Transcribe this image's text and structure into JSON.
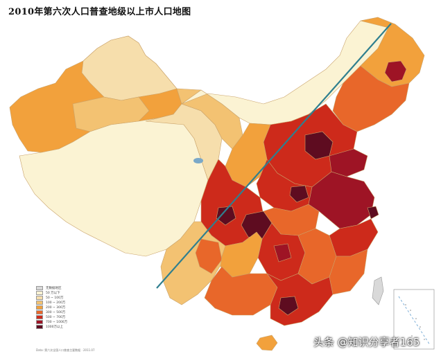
{
  "map": {
    "title": "2010年第六次人口普查地级以上市人口地图",
    "line_color": "#2f7f8f",
    "region_border_color": "#c9a26a"
  },
  "legend": {
    "entries": [
      {
        "label": "无数据地区",
        "color": "#d9d9d9"
      },
      {
        "label": "50 万以下",
        "color": "#fbf3d3"
      },
      {
        "label": "50 ~ 100万",
        "color": "#f6deac"
      },
      {
        "label": "100 ~ 200万",
        "color": "#f3c272"
      },
      {
        "label": "200 ~ 300万",
        "color": "#f2a13c"
      },
      {
        "label": "300 ~ 500万",
        "color": "#e8672a"
      },
      {
        "label": "500 ~ 700万",
        "color": "#cd2a1b"
      },
      {
        "label": "700 ~ 1000万",
        "color": "#9e1425"
      },
      {
        "label": "1000万以上",
        "color": "#5e0c20"
      }
    ],
    "footer": "Data: 第六次全国人口普查主要数据 · 2011.07"
  },
  "watermark": {
    "text": "头条 @知识分享者165"
  }
}
